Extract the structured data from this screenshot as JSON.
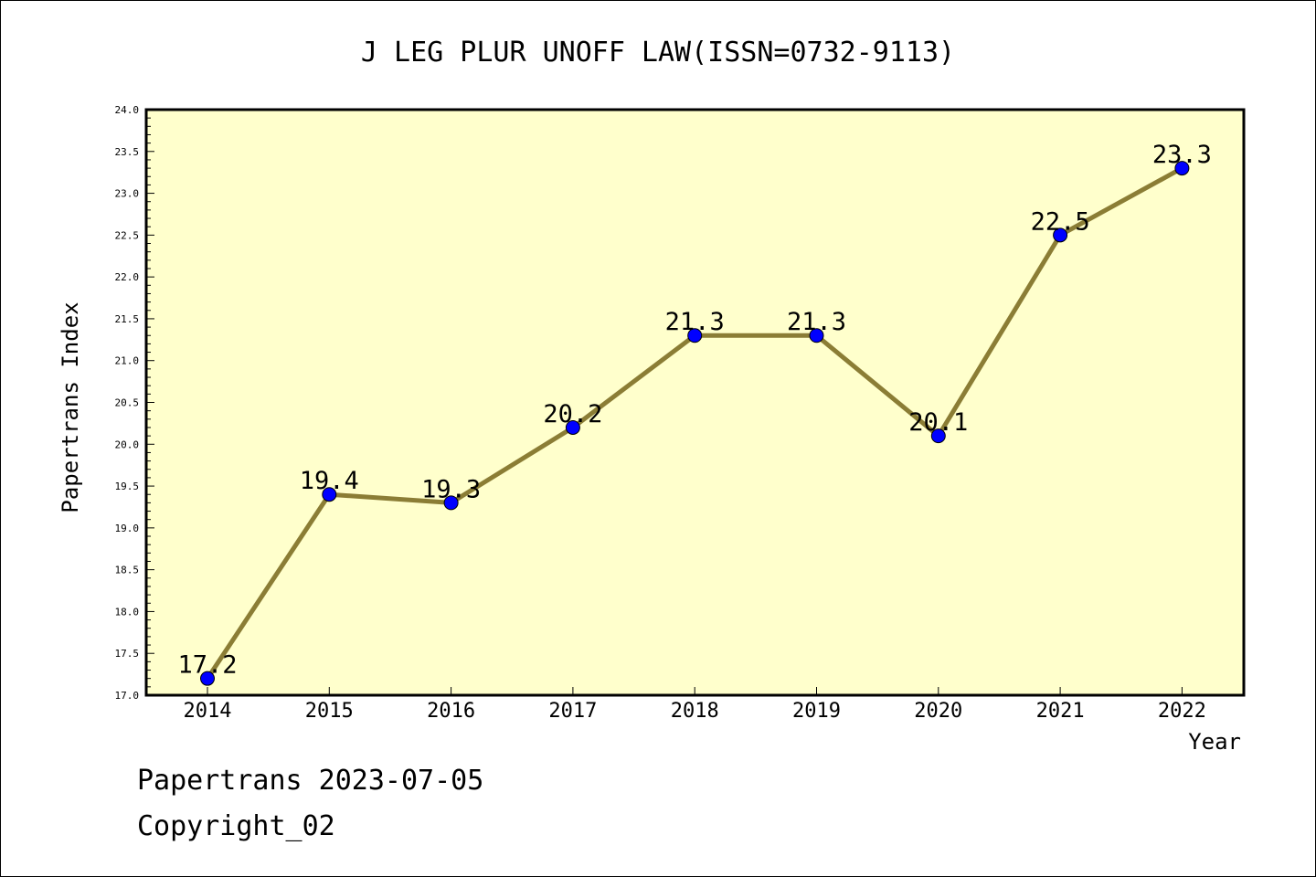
{
  "chart_data": {
    "type": "line",
    "title": "J LEG PLUR UNOFF LAW(ISSN=0732-9113)",
    "xlabel": "Year",
    "ylabel": "Papertrans Index",
    "categories": [
      "2014",
      "2015",
      "2016",
      "2017",
      "2018",
      "2019",
      "2020",
      "2021",
      "2022"
    ],
    "values": [
      17.2,
      19.4,
      19.3,
      20.2,
      21.3,
      21.3,
      20.1,
      22.5,
      23.3
    ],
    "data_labels": [
      "17.2",
      "19.4",
      "19.3",
      "20.2",
      "21.3",
      "21.3",
      "20.1",
      "22.5",
      "23.3"
    ],
    "ylim": [
      17.0,
      24.0
    ],
    "yticks": [
      "17.0",
      "17.5",
      "18.0",
      "18.5",
      "19.0",
      "19.5",
      "20.0",
      "20.5",
      "21.0",
      "21.5",
      "22.0",
      "22.5",
      "23.0",
      "23.5",
      "24.0"
    ],
    "grid": false,
    "colors": {
      "plot_background": "#ffffcc",
      "line": "#8b7d35",
      "marker": "#0000ff"
    }
  },
  "footer": {
    "line1": "Papertrans 2023-07-05",
    "line2": "Copyright_02"
  }
}
